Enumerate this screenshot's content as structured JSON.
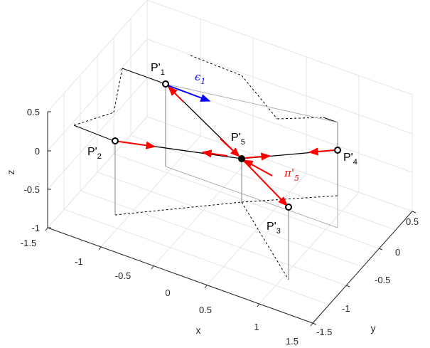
{
  "axes": {
    "x_label": "x",
    "y_label": "y",
    "z_label": "z",
    "x_ticks": [
      "-1.5",
      "-1",
      "-0.5",
      "0",
      "0.5",
      "1",
      "1.5"
    ],
    "y_ticks": [
      "-1.5",
      "-1",
      "-0.5",
      "0",
      "0.5"
    ],
    "z_ticks": [
      "0.5",
      "0",
      "-0.5",
      "-1"
    ]
  },
  "points": [
    {
      "id": "P1",
      "base": "P'",
      "sub": "1"
    },
    {
      "id": "P2",
      "base": "P'",
      "sub": "2"
    },
    {
      "id": "P3",
      "base": "P'",
      "sub": "3"
    },
    {
      "id": "P4",
      "base": "P'",
      "sub": "4"
    },
    {
      "id": "P5",
      "base": "P'",
      "sub": "5"
    }
  ],
  "vectors": {
    "epsilon": {
      "symbol": "ϵ",
      "sub": "1",
      "color": "#0000ff"
    },
    "pi": {
      "symbol": "π'",
      "sub": "5",
      "color": "#ff0000"
    }
  },
  "colors": {
    "grid": "#e6e6e6",
    "axis": "#262626",
    "arrow_red": "#ff0000",
    "arrow_blue": "#0000ff",
    "line_black": "#000000"
  }
}
